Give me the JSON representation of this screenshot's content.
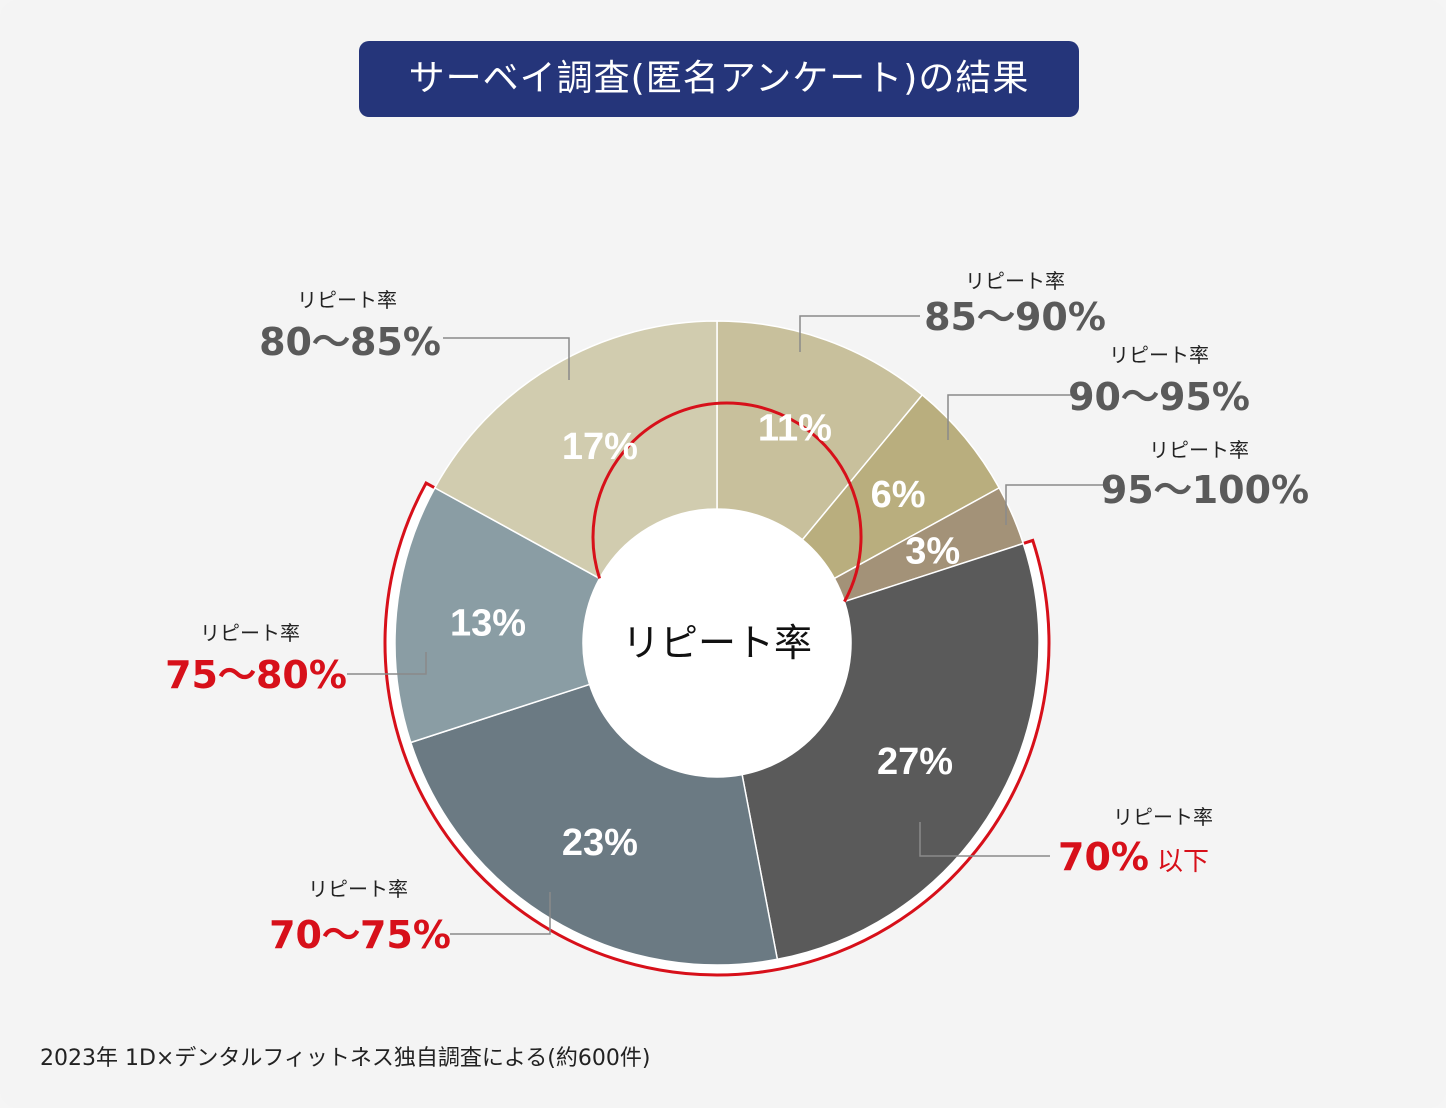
{
  "title": "サーベイ調査(匿名アンケート)の結果",
  "source_note": "2023年 1D×デンタルフィットネス独自調査による(約600件)",
  "center_label": "リピート率",
  "colors": {
    "title_bg": "#25357a",
    "highlight": "#d7101a",
    "label_gray": "#5a5a5a"
  },
  "chart_data": {
    "type": "pie",
    "donut": true,
    "title": "サーベイ調査(匿名アンケート)の結果",
    "slices": [
      {
        "caption": "リピート率",
        "range": "85〜90%",
        "suffix": "",
        "value": 11,
        "label": "11%",
        "color": "#c8c09c",
        "highlight": false
      },
      {
        "caption": "リピート率",
        "range": "90〜95%",
        "suffix": "",
        "value": 6,
        "label": "6%",
        "color": "#b9ae7e",
        "highlight": false
      },
      {
        "caption": "リピート率",
        "range": "95〜100%",
        "suffix": "",
        "value": 3,
        "label": "3%",
        "color": "#a39278",
        "highlight": false
      },
      {
        "caption": "リピート率",
        "range": "70%",
        "suffix": "以下",
        "value": 27,
        "label": "27%",
        "color": "#5a5a5a",
        "highlight": true
      },
      {
        "caption": "リピート率",
        "range": "70〜75%",
        "suffix": "",
        "value": 23,
        "label": "23%",
        "color": "#6b7a83",
        "highlight": true
      },
      {
        "caption": "リピート率",
        "range": "75〜80%",
        "suffix": "",
        "value": 13,
        "label": "13%",
        "color": "#8a9da4",
        "highlight": true
      },
      {
        "caption": "リピート率",
        "range": "80〜85%",
        "suffix": "",
        "value": 17,
        "label": "17%",
        "color": "#d1ccaf",
        "highlight": false
      }
    ]
  }
}
